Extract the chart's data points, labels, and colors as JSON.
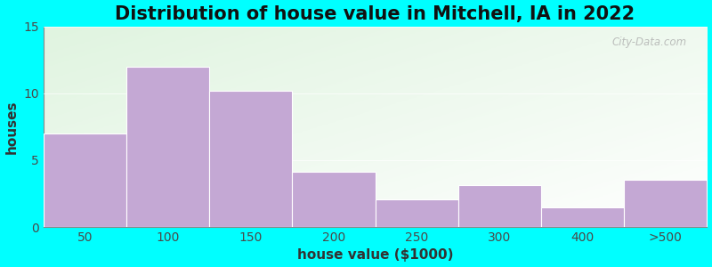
{
  "title": "Distribution of house value in Mitchell, IA in 2022",
  "xlabel": "house value ($1000)",
  "ylabel": "houses",
  "categories": [
    "50",
    "100",
    "150",
    "200",
    "250",
    "300",
    "400",
    ">500"
  ],
  "values": [
    7,
    12,
    10.2,
    4.1,
    2.1,
    3.1,
    1.5,
    3.5
  ],
  "bar_color": "#C4A8D4",
  "bar_edgecolor": "#FFFFFF",
  "ylim": [
    0,
    15
  ],
  "yticks": [
    0,
    5,
    10,
    15
  ],
  "background_outer": "#00FFFF",
  "title_fontsize": 15,
  "axis_label_fontsize": 11,
  "tick_fontsize": 10,
  "watermark_text": "City-Data.com"
}
